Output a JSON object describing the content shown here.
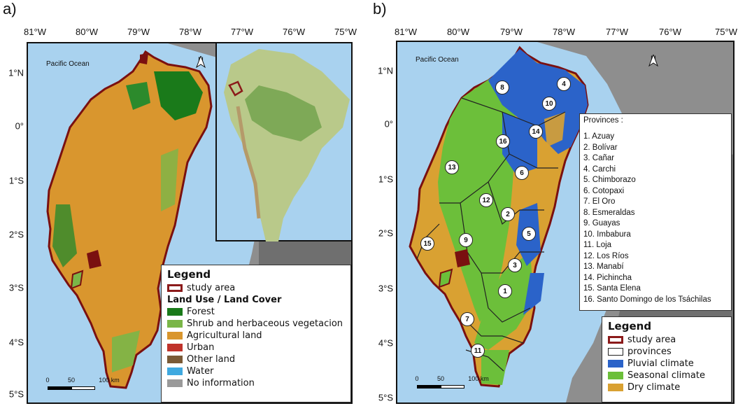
{
  "panels": [
    {
      "letter": "a)",
      "lon_ticks": [
        "81°W",
        "80°W",
        "79°W",
        "78°W",
        "77°W",
        "76°W",
        "75°W"
      ],
      "lat_ticks": [
        "1°N",
        "0°",
        "1°S",
        "2°S",
        "3°S",
        "4°S",
        "5°S"
      ],
      "ocean_label": "Pacific Ocean",
      "north_label": "N",
      "scale": {
        "labels": [
          "0",
          "50",
          "100 km"
        ]
      },
      "legend": {
        "title": "Legend",
        "items": [
          {
            "label": "study area",
            "color": "#8b1a1a",
            "type": "outline"
          }
        ],
        "subtitle": "Land Use / Land Cover",
        "classes": [
          {
            "label": "Forest",
            "color": "#1a7a1a"
          },
          {
            "label": "Shrub and herbaceous vegetacion",
            "color": "#7ab648"
          },
          {
            "label": "Agricultural land",
            "color": "#d9962e"
          },
          {
            "label": "Urban",
            "color": "#c0332b"
          },
          {
            "label": "Other land",
            "color": "#7a5a36"
          },
          {
            "label": "Water",
            "color": "#3fa9e0"
          },
          {
            "label": "No information",
            "color": "#9a9a9a"
          }
        ]
      }
    },
    {
      "letter": "b)",
      "lon_ticks": [
        "81°W",
        "80°W",
        "79°W",
        "78°W",
        "77°W",
        "76°W",
        "75°W"
      ],
      "lat_ticks": [
        "1°N",
        "0°",
        "1°S",
        "2°S",
        "3°S",
        "4°S",
        "5°S"
      ],
      "ocean_label": "Pacific Ocean",
      "north_label": "N",
      "scale": {
        "labels": [
          "0",
          "50",
          "100 km"
        ]
      },
      "provinces_title": "Provinces :",
      "provinces": [
        "1. Azuay",
        "2. Bolívar",
        "3. Cañar",
        "4. Carchi",
        "5. Chimborazo",
        "6. Cotopaxi",
        "7. El Oro",
        "8. Esmeraldas",
        "9. Guayas",
        "10. Imbabura",
        "11. Loja",
        "12. Los Ríos",
        "13. Manabí",
        "14. Pichincha",
        "15. Santa Elena",
        "16. Santo Domingo de los Tsáchilas"
      ],
      "badges": [
        "1",
        "2",
        "3",
        "4",
        "5",
        "6",
        "7",
        "8",
        "9",
        "10",
        "11",
        "12",
        "13",
        "14",
        "15",
        "16"
      ],
      "legend": {
        "title": "Legend",
        "items": [
          {
            "label": "study area",
            "color": "#8b1a1a",
            "type": "outline"
          },
          {
            "label": "provinces",
            "color": "#222222",
            "type": "outline"
          },
          {
            "label": "Pluvial climate",
            "color": "#2b63c9",
            "type": "fill"
          },
          {
            "label": "Seasonal climate",
            "color": "#6cbf3a",
            "type": "fill"
          },
          {
            "label": "Dry climate",
            "color": "#d9a132",
            "type": "fill"
          }
        ]
      }
    }
  ],
  "colors": {
    "ocean": "#a9d2ef",
    "land_gray": "#8e8e8e",
    "land_dark": "#6a6a6a",
    "inset_land": "#b9c98a"
  }
}
